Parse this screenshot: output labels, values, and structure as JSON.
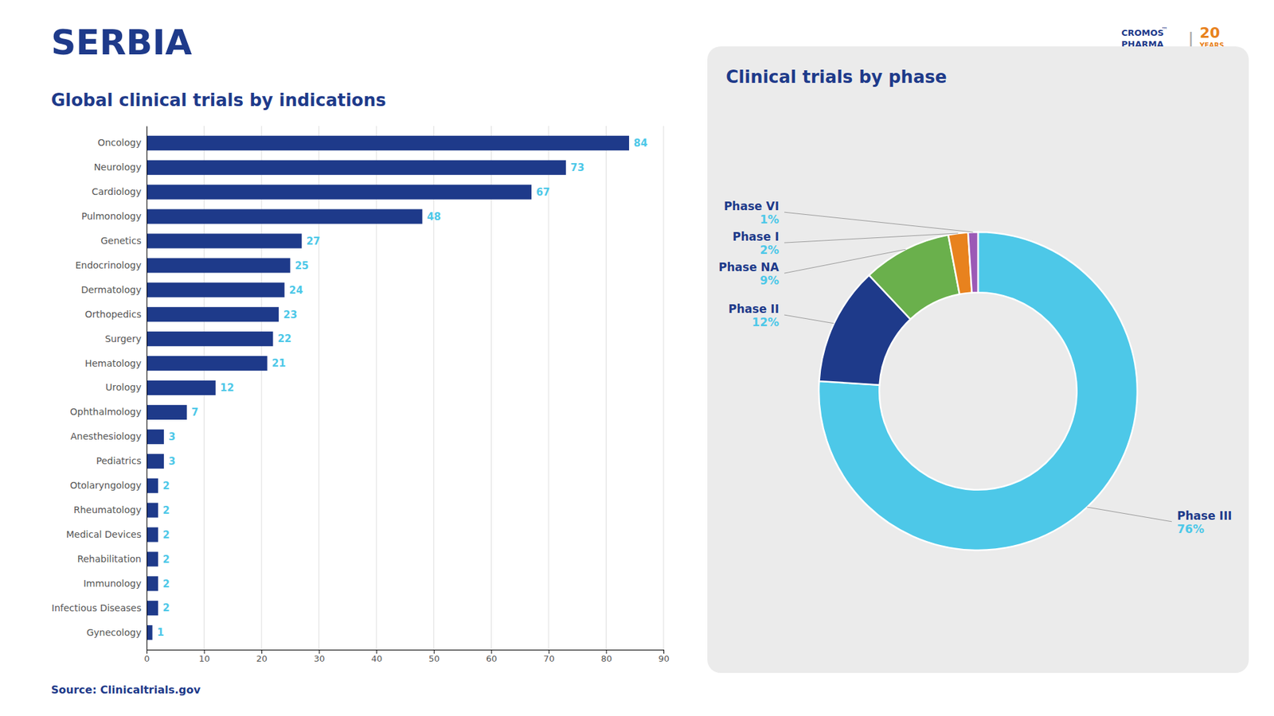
{
  "title": "SERBIA",
  "source": "Source: Clinicaltrials.gov",
  "annotations": [
    "CROMOS",
    "™",
    "PHARMA",
    "|",
    "20",
    "YEARS"
  ],
  "chart_data": [
    {
      "type": "bar",
      "orientation": "horizontal",
      "title": "Global clinical trials by indications",
      "categories": [
        "Oncology",
        "Neurology",
        "Cardiology",
        "Pulmonology",
        "Genetics",
        "Endocrinology",
        "Dermatology",
        "Orthopedics",
        "Surgery",
        "Hematology",
        "Urology",
        "Ophthalmology",
        "Anesthesiology",
        "Pediatrics",
        "Otolaryngology",
        "Rheumatology",
        "Medical Devices",
        "Rehabilitation",
        "Immunology",
        "Infectious Diseases",
        "Gynecology"
      ],
      "values": [
        84,
        73,
        67,
        48,
        27,
        25,
        24,
        23,
        22,
        21,
        12,
        7,
        3,
        3,
        2,
        2,
        2,
        2,
        2,
        2,
        1
      ],
      "color": "#1e3a8a",
      "xlim": [
        0,
        90
      ],
      "xticks": [
        0,
        10,
        20,
        30,
        40,
        50,
        60,
        70,
        80,
        90
      ],
      "grid": true,
      "data_labels": true
    },
    {
      "type": "pie",
      "title": "Clinical trials by phase",
      "categories": [
        "Phase III",
        "Phase II",
        "Phase NA",
        "Phase I",
        "Phase VI"
      ],
      "values": [
        76,
        12,
        9,
        2,
        1
      ],
      "value_labels": [
        "76%",
        "12%",
        "9%",
        "2%",
        "1%"
      ],
      "colors": [
        "#4dc8e8",
        "#1e3a8a",
        "#6ab04c",
        "#e8821e",
        "#9b59b6"
      ],
      "data_labels": true
    }
  ]
}
